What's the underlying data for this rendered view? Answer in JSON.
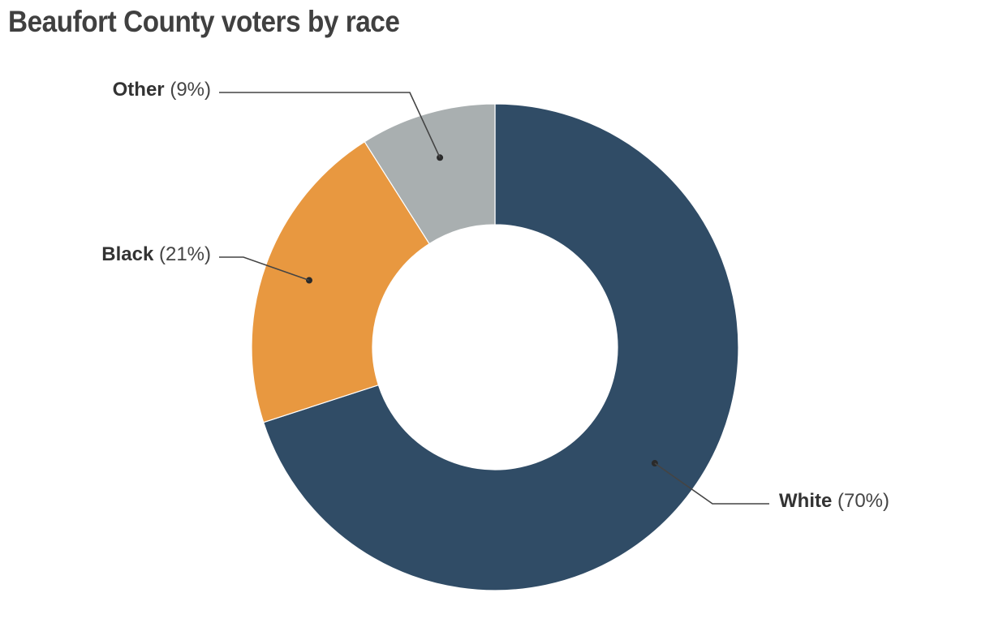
{
  "chart_data": {
    "type": "pie",
    "title": "Beaufort County voters by race",
    "donut": true,
    "slices": [
      {
        "label": "White",
        "value": 70,
        "pct_text": "(70%)",
        "color": "#304c66"
      },
      {
        "label": "Black",
        "value": 21,
        "pct_text": "(21%)",
        "color": "#e89840"
      },
      {
        "label": "Other",
        "value": 9,
        "pct_text": "(9%)",
        "color": "#a9afb0"
      }
    ]
  }
}
